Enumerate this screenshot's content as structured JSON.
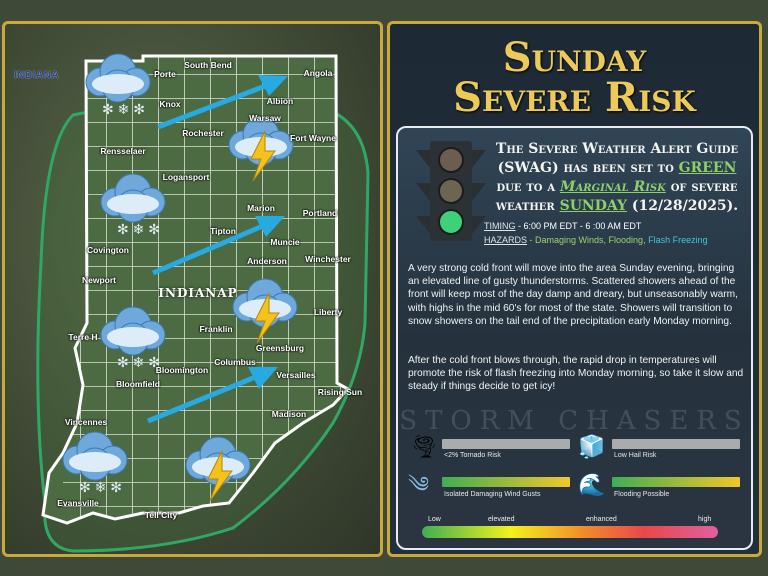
{
  "map": {
    "logo_text": "INDIANA",
    "capital_label": "INDIANAP",
    "cities": [
      "South Bend",
      "Porte",
      "Angola",
      "Knox",
      "Albion",
      "Warsaw",
      "Rochester",
      "Fort Wayne",
      "Rensselaer",
      "Logansport",
      "Marion",
      "Portland",
      "Tipton",
      "Muncie",
      "Covington",
      "Anderson",
      "Winchester",
      "Newport",
      "Liberty",
      "Franklin",
      "Terre H",
      "Greensburg",
      "Columbus",
      "Bloomington",
      "Versailles",
      "Bloomfield",
      "Rising Sun",
      "Madison",
      "Vincennes",
      "Evansville",
      "Tell City"
    ],
    "icons": [
      "snow-cloud-icon",
      "thunderstorm-cloud-icon",
      "wind-arrow-icon"
    ],
    "risk_outline_color": "#2fa866",
    "arrow_color": "#27a9e1"
  },
  "panel": {
    "title_line1": "Sunday",
    "title_line2": "Severe Risk",
    "swag": {
      "part1": "The Severe Weather Alert Guide (SWAG) has been set to ",
      "level": "GREEN",
      "part2": " due to a ",
      "risk": "Marginal Risk",
      "part3": " of severe weather ",
      "day": "SUNDAY",
      "part4": " (12/28/2025)."
    },
    "timing_label": "TIMING",
    "timing_value": " - 6:00 PM EDT - 6 :00 AM EDT",
    "hazards_label": "HAZARDS",
    "hazards_value": " - Damaging Winds, Flooding, ",
    "hazards_extra": "Flash Freezing",
    "paragraph1": "A very strong cold front will move into the area Sunday evening, bringing an elevated line of gusty thunderstorms. Scattered showers ahead of the front will keep most of the day damp and dreary, but unseasonably warm, with highs in the mid 60's for most of the state. Showers will transition to snow showers on the tail end of the precipitation early Monday morning.",
    "paragraph2": "After the cold front blows through, the rapid drop in temperatures will promote the risk of flash freezing into Monday morning, so take it slow and steady if things decide to get icy!",
    "watermark": "STORM CHASERS",
    "traffic_light_active": "green",
    "risks": [
      {
        "label": "<2% Tornado Risk",
        "icon": "tornado-icon",
        "level": "none"
      },
      {
        "label": "Low Hail Risk",
        "icon": "hail-icon",
        "level": "none"
      },
      {
        "label": "Isolated Damaging Wind Gusts",
        "icon": "wind-icon",
        "level": "low-elevated"
      },
      {
        "label": "Flooding Possible",
        "icon": "flood-wave-icon",
        "level": "low-elevated"
      }
    ],
    "scale": [
      "Low",
      "elevated",
      "enhanced",
      "high"
    ],
    "colors": {
      "gold": "#edc95a",
      "green_link": "#8fcf6a",
      "flash_freezing": "#3ec8d8"
    }
  }
}
